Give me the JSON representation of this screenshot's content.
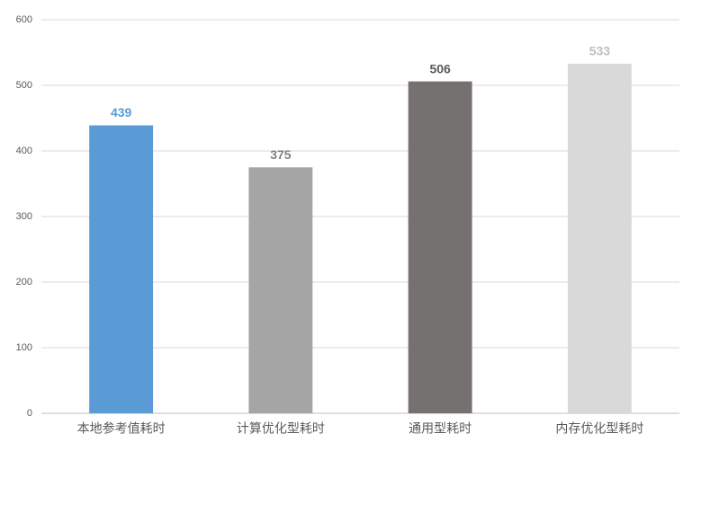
{
  "chart_data": {
    "type": "bar",
    "categories": [
      "本地参考值耗时",
      "计算优化型耗时",
      "通用型耗时",
      "内存优化型耗时"
    ],
    "values": [
      439,
      375,
      506,
      533
    ],
    "colors": [
      "#5b9bd5",
      "#a5a5a5",
      "#767171",
      "#d9d9d9"
    ],
    "label_colors": [
      "#5b9bd5",
      "#7f7f7f",
      "#595959",
      "#bfbfbf"
    ],
    "ylim": [
      0,
      600
    ],
    "yticks": [
      0,
      100,
      200,
      300,
      400,
      500,
      600
    ],
    "grid": true
  }
}
